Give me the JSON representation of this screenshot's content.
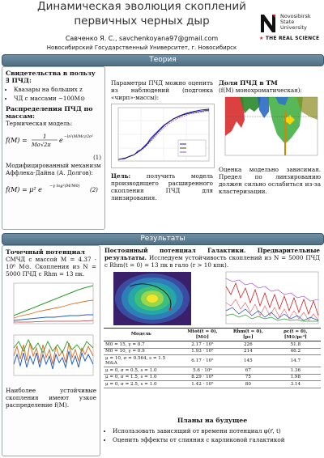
{
  "header": {
    "title_line1": "Динамическая эволюция скоплений",
    "title_line2": "первичных черных дыр",
    "authors": "Савченко Я. С., savchenkoyana97@gmail.com",
    "affiliation": "Новосибирский Государственный Университет, г. Новосибирск",
    "logo_line1": "Novosibirsk",
    "logo_line2": "State",
    "logo_line3": "University",
    "logo_tagline": "THE REAL SCIENCE",
    "logo_letter": "N"
  },
  "sections": {
    "theory": "Теория",
    "results": "Результаты"
  },
  "theory_left": {
    "heading1": "Свидетельства в пользу ∃ ПЧД:",
    "bullet1": "Квазары на больших z",
    "bullet2": "ЧД с массами ~100M⊙",
    "heading2": "Распределения ПЧД по массам:",
    "text1": "Термическая модель:",
    "eq1": "f(M) = 1 / (Mσ√2π) · e^(−(ln²(M/Mc))/2σ²)",
    "eq1_no": "(1)",
    "text2": "Модифицированный механизм Аффлека-Дайна (А. Долгов):",
    "eq2": "f(M) = μ² e^(−γ log²(M/M0))",
    "eq2_no": "(2)"
  },
  "theory_middle": {
    "text1": "Параметры ПЧД можно оценить из наблюдений (подгонка «чирп»-массы):",
    "goal_label": "Цель:",
    "goal_text": "получить модель производящего расширенного скопления ПЧД для линзирования."
  },
  "theory_right": {
    "heading": "Доля ПЧД в ТМ",
    "subheading": "(f(M) монохроматическая):",
    "text": "Оценка модельно зависимая. Предел по линзированию должен сильно ослабиться из-за кластеризации."
  },
  "results_left": {
    "heading": "Точечный потенциал",
    "text1": "СМЧД с массой M = 4.37 · 10⁶ M⊙. Скопления из N = 5000 ПЧД с Rhm = 13 пк.",
    "text2": "Наиболее устойчивые скопления имеют узкое распределение f(M)."
  },
  "results_right": {
    "heading": "Постоянный потенциал Галактики. Предварительные результаты.",
    "text": "Исследуем устойчивость скоплений из N = 5000 ПЧД с Rhm(t = 0) = 13 пк в гало (r > 10 кпк)."
  },
  "table": {
    "headers": [
      "Модель",
      "Mtot(t = 0), [M⊙]",
      "Rhm(t = 0), [pc]",
      "ρc(t = 0), [M⊙/pc³]"
    ],
    "rows": [
      [
        "M0 = 15, γ = 0.7",
        "2.17 · 10⁵",
        "226",
        "51.8"
      ],
      [
        "M0 = 10, γ = 0.9",
        "1.93 · 10⁵",
        "214",
        "46.2"
      ],
      [
        "μ = 10, σ = 0.564, s = 1.5 M&A",
        "6.17 · 10⁵",
        "145",
        "14.7"
      ],
      [
        "μ = 0, σ = 0.5, s = 1.0",
        "5.6 · 10⁴",
        "67",
        "1.36"
      ],
      [
        "μ = 0, σ = 1.5, s = 1.0",
        "8.29 · 10⁴",
        "75",
        "1.98"
      ],
      [
        "μ = 0, σ = 2.5, s = 1.0",
        "1.42 · 10⁵",
        "80",
        "3.14"
      ]
    ]
  },
  "plans": {
    "heading": "Планы на будущее",
    "items": [
      "Использовать зависящий от времени потенциал φ(r⃗, t)",
      "Оценить эффекты от слияния с карликовой галактикой"
    ]
  },
  "colors": {
    "section_bar": "#4f7085",
    "logo_red": "#d4213d"
  }
}
